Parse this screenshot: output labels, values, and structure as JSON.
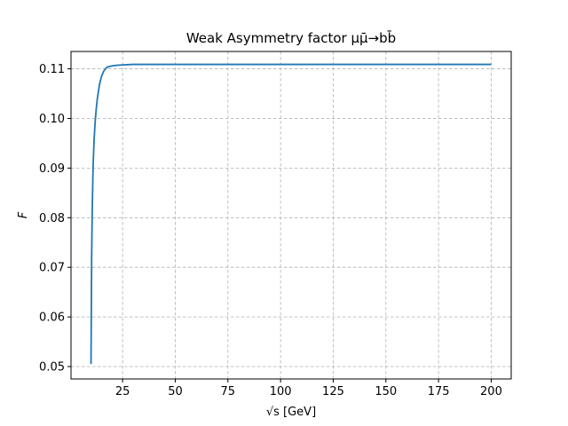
{
  "chart_data": {
    "type": "line",
    "title": "Weak Asymmetry factor μμ̄→bb̄",
    "xlabel": "√s [GeV]",
    "ylabel": "F",
    "xlim": [
      0.5,
      209.5
    ],
    "ylim": [
      0.0475,
      0.1135
    ],
    "x_ticks": [
      25,
      50,
      75,
      100,
      125,
      150,
      175,
      200
    ],
    "y_ticks": [
      0.05,
      0.06,
      0.07,
      0.08,
      0.09,
      0.1,
      0.11
    ],
    "x_tick_labels": [
      "25",
      "50",
      "75",
      "100",
      "125",
      "150",
      "175",
      "200"
    ],
    "y_tick_labels": [
      "0.05",
      "0.06",
      "0.07",
      "0.08",
      "0.09",
      "0.10",
      "0.11"
    ],
    "grid": true,
    "line_color": "#1f77b4",
    "series": [
      {
        "x": [
          10,
          10.3,
          10.6,
          11,
          11.5,
          12,
          12.5,
          13,
          14,
          15,
          16,
          17,
          18,
          20,
          22,
          25,
          30,
          35,
          40,
          50,
          60,
          75,
          100,
          125,
          150,
          175,
          200
        ],
        "values": [
          0.0505,
          0.072,
          0.082,
          0.0905,
          0.096,
          0.0995,
          0.102,
          0.104,
          0.1068,
          0.1085,
          0.1095,
          0.1101,
          0.1104,
          0.1106,
          0.1107,
          0.1108,
          0.1109,
          0.1109,
          0.1109,
          0.1109,
          0.1109,
          0.1109,
          0.1109,
          0.1109,
          0.1109,
          0.1109,
          0.1109
        ]
      }
    ]
  }
}
